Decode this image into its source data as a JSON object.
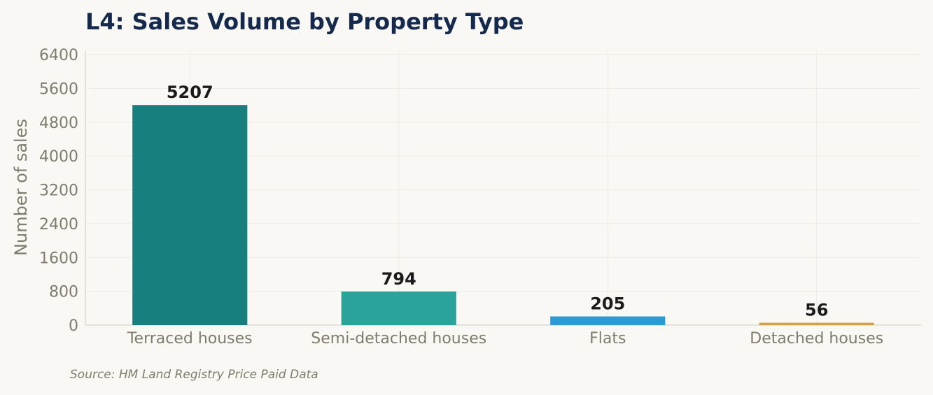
{
  "chart_data": {
    "type": "bar",
    "title": "L4: Sales Volume by Property Type",
    "ylabel": "Number of sales",
    "xlabel": "",
    "categories": [
      "Terraced houses",
      "Semi-detached houses",
      "Flats",
      "Detached houses"
    ],
    "values": [
      5207,
      794,
      205,
      56
    ],
    "data_labels": [
      "5207",
      "794",
      "205",
      "56"
    ],
    "colors": [
      "#17807e",
      "#2aa39a",
      "#2a9bd6",
      "#d1a347"
    ],
    "ylim": [
      0,
      6500
    ],
    "yticks": [
      0,
      800,
      1600,
      2400,
      3200,
      4000,
      4800,
      5600,
      6400
    ],
    "ytick_labels": [
      "0",
      "800",
      "1600",
      "2400",
      "3200",
      "4000",
      "4800",
      "5600",
      "6400"
    ],
    "grid": true,
    "legend": "none"
  },
  "footer": {
    "source": "Source: HM Land Registry Price Paid Data"
  }
}
